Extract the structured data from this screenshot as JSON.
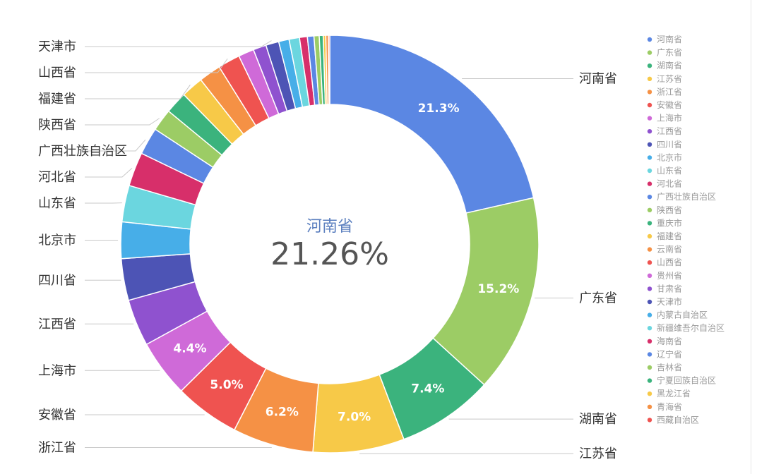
{
  "chart_data": {
    "type": "pie",
    "donut": true,
    "legend_position": "right",
    "center": {
      "name": "河南省",
      "value": "21.26%"
    },
    "categories": [
      "河南省",
      "广东省",
      "湖南省",
      "江苏省",
      "浙江省",
      "安徽省",
      "上海市",
      "江西省",
      "四川省",
      "北京市",
      "山东省",
      "河北省",
      "广西壮族自治区",
      "陕西省",
      "重庆市",
      "福建省",
      "云南省",
      "山西省",
      "贵州省",
      "甘肃省",
      "天津市",
      "内蒙古自治区",
      "新疆维吾尔自治区",
      "海南省",
      "辽宁省",
      "吉林省",
      "宁夏回族自治区",
      "黑龙江省",
      "青海省",
      "西藏自治区"
    ],
    "values": [
      21.26,
      15.2,
      7.4,
      7.0,
      6.2,
      5.0,
      4.4,
      3.6,
      3.2,
      2.8,
      2.8,
      2.6,
      2.1,
      1.7,
      1.7,
      1.7,
      1.7,
      1.7,
      1.2,
      1.0,
      1.0,
      0.8,
      0.8,
      0.6,
      0.5,
      0.4,
      0.3,
      0.2,
      0.2,
      0.1
    ],
    "data_labels": [
      {
        "index": 0,
        "text": "21.3%"
      },
      {
        "index": 1,
        "text": "15.2%"
      },
      {
        "index": 2,
        "text": "7.4%"
      },
      {
        "index": 3,
        "text": "7.0%"
      },
      {
        "index": 4,
        "text": "6.2%"
      },
      {
        "index": 5,
        "text": "5.0%"
      },
      {
        "index": 6,
        "text": "4.4%"
      }
    ],
    "callouts": [
      {
        "index": 0,
        "text": "河南省",
        "side": "right"
      },
      {
        "index": 1,
        "text": "广东省",
        "side": "right"
      },
      {
        "index": 2,
        "text": "湖南省",
        "side": "right"
      },
      {
        "index": 3,
        "text": "江苏省",
        "side": "right"
      },
      {
        "index": 4,
        "text": "浙江省",
        "side": "left"
      },
      {
        "index": 5,
        "text": "安徽省",
        "side": "left"
      },
      {
        "index": 6,
        "text": "上海市",
        "side": "left"
      },
      {
        "index": 7,
        "text": "江西省",
        "side": "left"
      },
      {
        "index": 8,
        "text": "四川省",
        "side": "left"
      },
      {
        "index": 9,
        "text": "北京市",
        "side": "left"
      },
      {
        "index": 10,
        "text": "山东省",
        "side": "left"
      },
      {
        "index": 11,
        "text": "河北省",
        "side": "left"
      },
      {
        "index": 12,
        "text": "广西壮族自治区",
        "side": "left"
      },
      {
        "index": 13,
        "text": "陕西省",
        "side": "left"
      },
      {
        "index": 15,
        "text": "福建省",
        "side": "left"
      },
      {
        "index": 17,
        "text": "山西省",
        "side": "left"
      },
      {
        "index": 20,
        "text": "天津市",
        "side": "left"
      }
    ],
    "colors": [
      "#5b87e3",
      "#9ccc65",
      "#3bb37d",
      "#f7c948",
      "#f59145",
      "#ef5350",
      "#cf6ad8",
      "#8f52cf",
      "#4d54b5",
      "#47aee8",
      "#6bd6df",
      "#d72f6a",
      "#5b87e3",
      "#9ccc65",
      "#3bb37d",
      "#f7c948",
      "#f59145",
      "#ef5350",
      "#cf6ad8",
      "#8f52cf",
      "#4d54b5",
      "#47aee8",
      "#6bd6df",
      "#d72f6a",
      "#5b87e3",
      "#9ccc65",
      "#3bb37d",
      "#f7c948",
      "#f59145",
      "#ef5350"
    ]
  }
}
